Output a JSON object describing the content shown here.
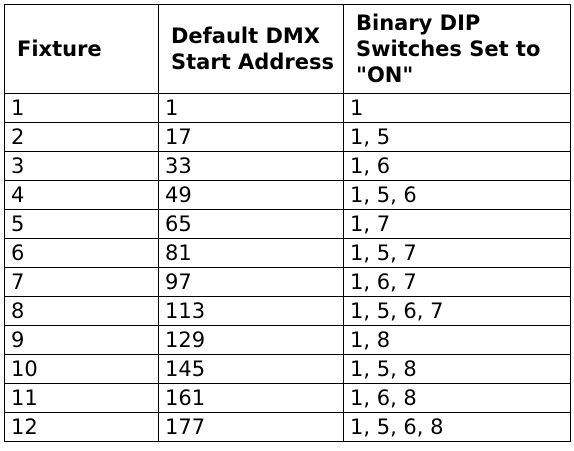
{
  "table": {
    "headers": [
      "Fixture",
      "Default DMX Start Address",
      "Binary DIP Switches Set to \"ON\""
    ],
    "rows": [
      [
        "1",
        "1",
        "1"
      ],
      [
        "2",
        "17",
        "1, 5"
      ],
      [
        "3",
        "33",
        "1, 6"
      ],
      [
        "4",
        "49",
        "1, 5, 6"
      ],
      [
        "5",
        "65",
        "1, 7"
      ],
      [
        "6",
        "81",
        "1, 5, 7"
      ],
      [
        "7",
        "97",
        "1, 6, 7"
      ],
      [
        "8",
        "113",
        "1, 5, 6, 7"
      ],
      [
        "9",
        "129",
        "1, 8"
      ],
      [
        "10",
        "145",
        "1, 5, 8"
      ],
      [
        "11",
        "161",
        "1, 6, 8"
      ],
      [
        "12",
        "177",
        "1, 5, 6, 8"
      ]
    ]
  }
}
